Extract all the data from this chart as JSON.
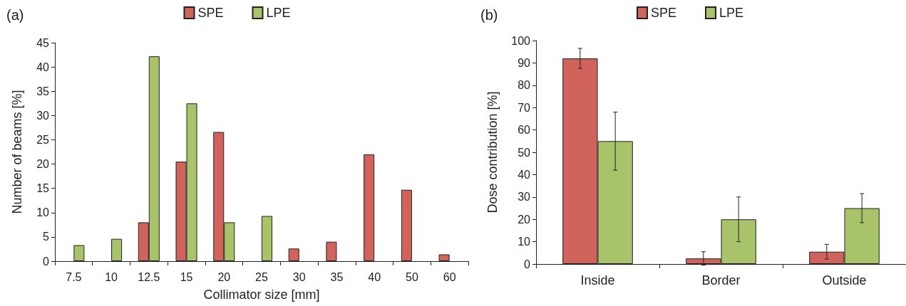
{
  "chart_data": [
    {
      "type": "bar",
      "title": "(a)",
      "xlabel": "Collimator size [mm]",
      "ylabel": "Number of beams [%]",
      "categories": [
        "7.5",
        "10",
        "12.5",
        "15",
        "20",
        "25",
        "30",
        "35",
        "40",
        "50",
        "60"
      ],
      "series": [
        {
          "name": "SPE",
          "color": "#d0635c",
          "values": [
            null,
            null,
            8,
            20.5,
            26.6,
            null,
            2.6,
            4,
            22,
            14.7,
            1.4
          ]
        },
        {
          "name": "LPE",
          "color": "#a8c36a",
          "values": [
            3.3,
            4.6,
            42.2,
            32.5,
            8,
            9.3,
            null,
            null,
            null,
            null,
            null
          ]
        }
      ],
      "ylim": [
        0,
        45
      ],
      "yticks": [
        0,
        5,
        10,
        15,
        20,
        25,
        30,
        35,
        40,
        45
      ],
      "grid": false,
      "legend": "top"
    },
    {
      "type": "bar",
      "title": "(b)",
      "ylabel": "Dose contribution [%]",
      "categories": [
        "Inside",
        "Border",
        "Outside"
      ],
      "series": [
        {
          "name": "SPE",
          "color": "#d0635c",
          "values": [
            92,
            2.5,
            5.5
          ],
          "errors": [
            4.5,
            3,
            3.3
          ]
        },
        {
          "name": "LPE",
          "color": "#a8c36a",
          "values": [
            55,
            20,
            25
          ],
          "errors": [
            13,
            10,
            6.5
          ]
        }
      ],
      "ylim": [
        0,
        100
      ],
      "yticks": [
        0,
        10,
        20,
        30,
        40,
        50,
        60,
        70,
        80,
        90,
        100
      ],
      "grid": false,
      "legend": "top"
    }
  ]
}
